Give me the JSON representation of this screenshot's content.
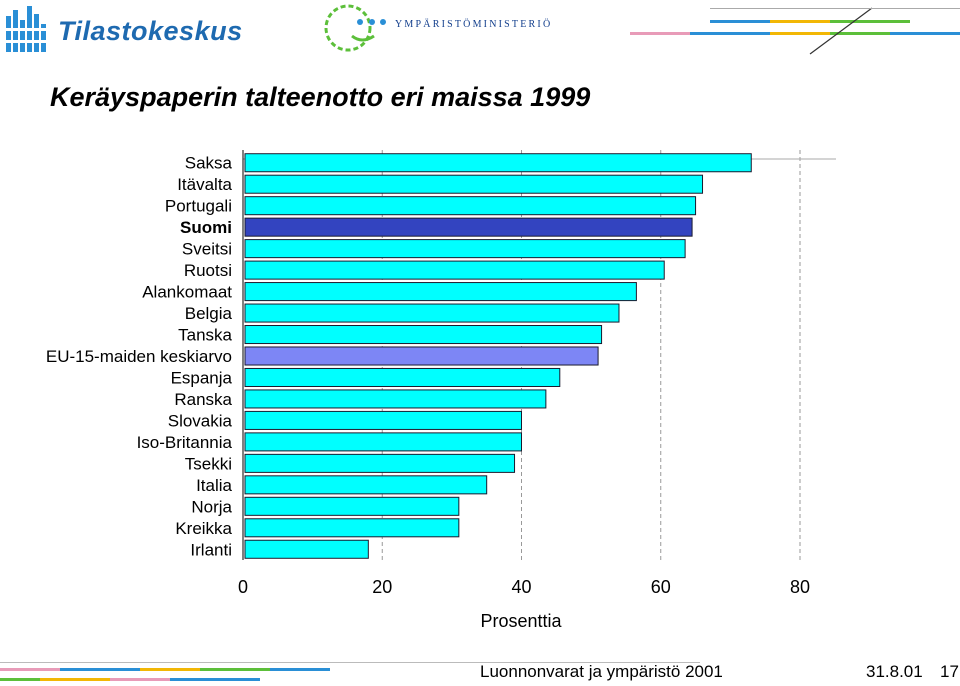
{
  "header": {
    "org_name": "Tilastokeskus",
    "ministry_name": "YMPÄRISTÖMINISTERIÖ",
    "brand_color": "#1e6ab0",
    "ministry_color": "#123e8c"
  },
  "chart_data": {
    "type": "bar",
    "orientation": "horizontal",
    "title": "Keräyspaperin talteenotto eri maissa 1999",
    "xlabel": "Prosenttia",
    "ylabel": "",
    "xlim": [
      0,
      80
    ],
    "xticks": [
      "0",
      "20",
      "40",
      "60",
      "80"
    ],
    "grid": "vertical dashed",
    "categories": [
      "Saksa",
      "Itävalta",
      "Portugali",
      "Suomi",
      "Sveitsi",
      "Ruotsi",
      "Alankomaat",
      "Belgia",
      "Tanska",
      "EU-15-maiden keskiarvo",
      "Espanja",
      "Ranska",
      "Slovakia",
      "Iso-Britannia",
      "Tsekki",
      "Italia",
      "Norja",
      "Kreikka",
      "Irlanti"
    ],
    "values": [
      73,
      66,
      65,
      64.5,
      63.5,
      60.5,
      56.5,
      54,
      51.5,
      51,
      45.5,
      43.5,
      40,
      40,
      39,
      35,
      31,
      31,
      18
    ],
    "highlight": {
      "Suomi": "#3344c0",
      "EU-15-maiden keskiarvo": "#7d86f5"
    },
    "bold_categories": [
      "Suomi"
    ],
    "colors": {
      "bar": "#00ffff",
      "bar_border": "#1a1a2e"
    }
  },
  "footer": {
    "text": "Luonnonvarat ja ympäristö 2001",
    "date": "31.8.01",
    "page": "17"
  }
}
